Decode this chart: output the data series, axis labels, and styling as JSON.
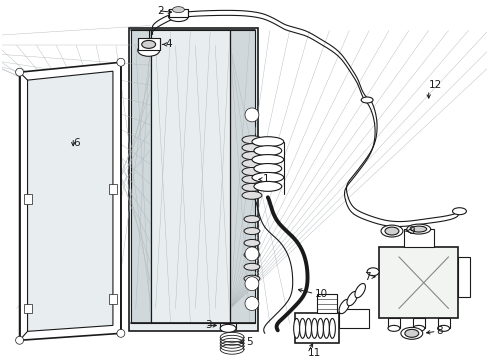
{
  "bg_color": "#ffffff",
  "fig_width": 4.89,
  "fig_height": 3.6,
  "dpi": 100,
  "line_color": "#1a1a1a",
  "fill_light": "#e8eef0",
  "fill_white": "#ffffff",
  "label_fontsize": 7.5
}
